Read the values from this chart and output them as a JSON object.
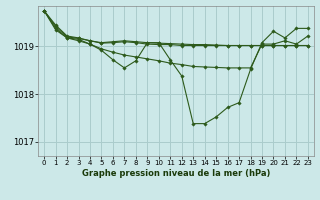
{
  "title": "Graphe pression niveau de la mer (hPa)",
  "bg_color": "#cce8e8",
  "grid_color": "#aacccc",
  "line_color": "#2d5a1b",
  "xlim": [
    -0.5,
    23.5
  ],
  "ylim": [
    1016.7,
    1019.85
  ],
  "yticks": [
    1017,
    1018,
    1019
  ],
  "xticks": [
    0,
    1,
    2,
    3,
    4,
    5,
    6,
    7,
    8,
    9,
    10,
    11,
    12,
    13,
    14,
    15,
    16,
    17,
    18,
    19,
    20,
    21,
    22,
    23
  ],
  "series": [
    [
      1019.75,
      1019.45,
      1019.22,
      1019.18,
      1019.12,
      1019.08,
      1019.1,
      1019.12,
      1019.1,
      1019.08,
      1019.07,
      1019.06,
      1019.05,
      1019.04,
      1019.04,
      1019.03,
      1019.02,
      1019.02,
      1019.02,
      1019.02,
      1019.02,
      1019.02,
      1019.02,
      1019.02
    ],
    [
      1019.75,
      1019.42,
      1019.2,
      1019.17,
      1019.12,
      1019.07,
      1019.08,
      1019.1,
      1019.08,
      1019.05,
      1019.04,
      1019.04,
      1019.02,
      1019.02,
      1019.02,
      1019.02,
      1019.02,
      1019.02,
      1019.02,
      1019.02,
      1019.02,
      1019.02,
      1019.02,
      1019.02
    ],
    [
      1019.75,
      1019.38,
      1019.18,
      1019.15,
      1019.05,
      1018.95,
      1018.88,
      1018.82,
      1018.78,
      1018.74,
      1018.7,
      1018.65,
      1018.62,
      1018.58,
      1018.57,
      1018.56,
      1018.55,
      1018.55,
      1018.55,
      1019.05,
      1019.05,
      1019.12,
      1019.05,
      1019.22
    ],
    [
      1019.75,
      1019.35,
      1019.18,
      1019.12,
      1019.05,
      1018.92,
      1018.72,
      1018.55,
      1018.7,
      1019.08,
      1019.08,
      1018.72,
      1018.38,
      1017.38,
      1017.38,
      1017.52,
      1017.72,
      1017.82,
      1018.52,
      1019.08,
      1019.32,
      1019.18,
      1019.38,
      1019.38
    ]
  ]
}
